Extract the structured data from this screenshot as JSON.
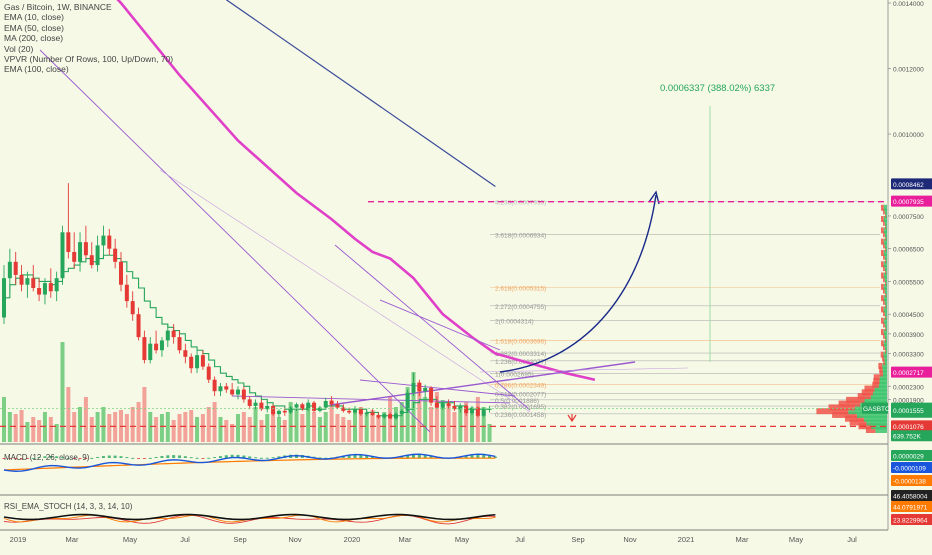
{
  "chart_data": {
    "type": "candlestick",
    "symbol_line": "Gas / Bitcoin, 1W, BINANCE",
    "indicators": [
      "EMA (10, close)",
      "EMA (50, close)",
      "MA (200, close)",
      "Vol (20)",
      "VPVR (Number Of Rows, 100, Up/Down, 70)",
      "EMA (100, close)"
    ],
    "price_axis": {
      "min": 6.6e-05,
      "max": 0.0014,
      "labels": [
        "0.0014000",
        "0.0012000",
        "0.0010000",
        "0.0008462",
        "0.0007935",
        "0.0007500",
        "0.0006500",
        "0.0005500",
        "0.0004500",
        "0.0003900",
        "0.0003300",
        "0.0002717",
        "0.0002300",
        "0.0001900",
        "0.0001617",
        "0.0001555",
        "0.0001076",
        "0.0000029",
        "-0.0000109",
        "-0.0000138",
        "44.0791971",
        "23.8229964"
      ]
    },
    "price_labels": [
      {
        "value": "0.0014000",
        "price": 0.0014
      },
      {
        "value": "0.0012000",
        "price": 0.0012
      },
      {
        "value": "0.0010000",
        "price": 0.001
      },
      {
        "value": "0.0007500",
        "price": 0.00075
      },
      {
        "value": "0.0006500",
        "price": 0.00065
      },
      {
        "value": "0.0005500",
        "price": 0.00055
      },
      {
        "value": "0.0004500",
        "price": 0.00045
      },
      {
        "value": "0.0003900",
        "price": 0.00039
      },
      {
        "value": "0.0003300",
        "price": 0.00033
      },
      {
        "value": "0.0002300",
        "price": 0.00023
      },
      {
        "value": "0.0001900",
        "price": 0.00019
      }
    ],
    "price_badges": [
      {
        "text": "0.0008462",
        "price": 0.0008462,
        "color": "#1e2a78"
      },
      {
        "text": "0.0007935",
        "price": 0.0007935,
        "color": "#e91e9a"
      },
      {
        "text": "0.0002717",
        "price": 0.0002717,
        "color": "#e91e9a"
      },
      {
        "text": "0.0001617",
        "price": 0.0001617,
        "color": "#26a65b",
        "prefix": "GASBTC"
      },
      {
        "text": "5d 11h",
        "price": 0.000149,
        "color": "#26a65b"
      },
      {
        "text": "0.0001555",
        "price": 0.0001555,
        "color": "#26a65b"
      },
      {
        "text": "0.0001076",
        "price": 0.0001076,
        "color": "#e53935"
      },
      {
        "text": "639.752K",
        "price": 7.75e-05,
        "color": "#26a65b"
      }
    ],
    "time_labels": [
      "2019",
      "Mar",
      "May",
      "Jul",
      "Sep",
      "Nov",
      "2020",
      "Mar",
      "May",
      "Jul",
      "Sep",
      "Nov",
      "2021",
      "Mar",
      "May",
      "Jul"
    ],
    "candles": [
      {
        "o": 0.00044,
        "h": 0.0006,
        "l": 0.00042,
        "c": 0.00056
      },
      {
        "o": 0.00056,
        "h": 0.00065,
        "l": 0.00052,
        "c": 0.00061
      },
      {
        "o": 0.00061,
        "h": 0.00064,
        "l": 0.00054,
        "c": 0.00057
      },
      {
        "o": 0.00057,
        "h": 0.0006,
        "l": 0.00052,
        "c": 0.00054
      },
      {
        "o": 0.00054,
        "h": 0.00058,
        "l": 0.0005,
        "c": 0.00056
      },
      {
        "o": 0.00056,
        "h": 0.0006,
        "l": 0.00052,
        "c": 0.00053
      },
      {
        "o": 0.00053,
        "h": 0.00056,
        "l": 0.00049,
        "c": 0.00051
      },
      {
        "o": 0.00051,
        "h": 0.00056,
        "l": 0.00048,
        "c": 0.000545
      },
      {
        "o": 0.000545,
        "h": 0.00059,
        "l": 0.0005,
        "c": 0.00052
      },
      {
        "o": 0.00052,
        "h": 0.00058,
        "l": 0.00049,
        "c": 0.00056
      },
      {
        "o": 0.00056,
        "h": 0.00072,
        "l": 0.00054,
        "c": 0.0007
      },
      {
        "o": 0.0007,
        "h": 0.00085,
        "l": 0.00062,
        "c": 0.00064
      },
      {
        "o": 0.00064,
        "h": 0.0007,
        "l": 0.00059,
        "c": 0.00061
      },
      {
        "o": 0.00061,
        "h": 0.0007,
        "l": 0.00058,
        "c": 0.00067
      },
      {
        "o": 0.00067,
        "h": 0.00072,
        "l": 0.00062,
        "c": 0.00063
      },
      {
        "o": 0.00063,
        "h": 0.00067,
        "l": 0.00059,
        "c": 0.0006
      },
      {
        "o": 0.0006,
        "h": 0.00069,
        "l": 0.00058,
        "c": 0.00066
      },
      {
        "o": 0.00066,
        "h": 0.00072,
        "l": 0.00062,
        "c": 0.00069
      },
      {
        "o": 0.00069,
        "h": 0.00071,
        "l": 0.00063,
        "c": 0.00065
      },
      {
        "o": 0.00065,
        "h": 0.00068,
        "l": 0.00059,
        "c": 0.00061
      },
      {
        "o": 0.00061,
        "h": 0.00064,
        "l": 0.00052,
        "c": 0.00054
      },
      {
        "o": 0.00054,
        "h": 0.00057,
        "l": 0.00047,
        "c": 0.00049
      },
      {
        "o": 0.00049,
        "h": 0.00052,
        "l": 0.00043,
        "c": 0.00045
      },
      {
        "o": 0.00045,
        "h": 0.00047,
        "l": 0.00037,
        "c": 0.00038
      },
      {
        "o": 0.00038,
        "h": 0.0004,
        "l": 0.0003,
        "c": 0.00031
      },
      {
        "o": 0.00031,
        "h": 0.00038,
        "l": 0.0003,
        "c": 0.00036
      },
      {
        "o": 0.00036,
        "h": 0.0004,
        "l": 0.00033,
        "c": 0.00034
      },
      {
        "o": 0.00034,
        "h": 0.00038,
        "l": 0.00032,
        "c": 0.00037
      },
      {
        "o": 0.00037,
        "h": 0.00042,
        "l": 0.00035,
        "c": 0.0004
      },
      {
        "o": 0.0004,
        "h": 0.00042,
        "l": 0.00036,
        "c": 0.00038
      },
      {
        "o": 0.00038,
        "h": 0.0004,
        "l": 0.00033,
        "c": 0.00034
      },
      {
        "o": 0.00034,
        "h": 0.00036,
        "l": 0.0003,
        "c": 0.00032
      },
      {
        "o": 0.00032,
        "h": 0.00033,
        "l": 0.00027,
        "c": 0.000285
      },
      {
        "o": 0.000285,
        "h": 0.00034,
        "l": 0.00027,
        "c": 0.000325
      },
      {
        "o": 0.000325,
        "h": 0.00034,
        "l": 0.00028,
        "c": 0.00029
      },
      {
        "o": 0.00029,
        "h": 0.0003,
        "l": 0.00024,
        "c": 0.00025
      },
      {
        "o": 0.00025,
        "h": 0.00026,
        "l": 0.0002,
        "c": 0.000215
      },
      {
        "o": 0.000215,
        "h": 0.00024,
        "l": 0.0002,
        "c": 0.00023
      },
      {
        "o": 0.00023,
        "h": 0.00024,
        "l": 0.00021,
        "c": 0.00022
      },
      {
        "o": 0.00022,
        "h": 0.00024,
        "l": 0.0002,
        "c": 0.000205
      },
      {
        "o": 0.000205,
        "h": 0.00023,
        "l": 0.00019,
        "c": 0.00022
      },
      {
        "o": 0.00022,
        "h": 0.00023,
        "l": 0.00018,
        "c": 0.00019
      },
      {
        "o": 0.00019,
        "h": 0.0002,
        "l": 0.00016,
        "c": 0.00017
      },
      {
        "o": 0.00017,
        "h": 0.00019,
        "l": 0.00016,
        "c": 0.00018
      },
      {
        "o": 0.00018,
        "h": 0.00019,
        "l": 0.000155,
        "c": 0.00016
      },
      {
        "o": 0.00016,
        "h": 0.00018,
        "l": 0.00015,
        "c": 0.00017
      },
      {
        "o": 0.00017,
        "h": 0.000175,
        "l": 0.00014,
        "c": 0.000145
      },
      {
        "o": 0.000145,
        "h": 0.00016,
        "l": 0.000135,
        "c": 0.000155
      },
      {
        "o": 0.000155,
        "h": 0.000165,
        "l": 0.00014,
        "c": 0.00015
      },
      {
        "o": 0.00015,
        "h": 0.00017,
        "l": 0.000145,
        "c": 0.000165
      },
      {
        "o": 0.000165,
        "h": 0.00018,
        "l": 0.000155,
        "c": 0.000175
      },
      {
        "o": 0.000175,
        "h": 0.00018,
        "l": 0.000155,
        "c": 0.00016
      },
      {
        "o": 0.00016,
        "h": 0.00019,
        "l": 0.000155,
        "c": 0.00018
      },
      {
        "o": 0.00018,
        "h": 0.000185,
        "l": 0.00015,
        "c": 0.000155
      },
      {
        "o": 0.000155,
        "h": 0.00017,
        "l": 0.00015,
        "c": 0.000165
      },
      {
        "o": 0.000165,
        "h": 0.000195,
        "l": 0.00016,
        "c": 0.000185
      },
      {
        "o": 0.000185,
        "h": 0.0002,
        "l": 0.00017,
        "c": 0.000175
      },
      {
        "o": 0.000175,
        "h": 0.000185,
        "l": 0.00016,
        "c": 0.000165
      },
      {
        "o": 0.000165,
        "h": 0.000175,
        "l": 0.00015,
        "c": 0.000155
      },
      {
        "o": 0.000155,
        "h": 0.000165,
        "l": 0.000145,
        "c": 0.00015
      },
      {
        "o": 0.00015,
        "h": 0.00017,
        "l": 0.000145,
        "c": 0.00016
      },
      {
        "o": 0.00016,
        "h": 0.000165,
        "l": 0.00014,
        "c": 0.000145
      },
      {
        "o": 0.000145,
        "h": 0.000155,
        "l": 0.000138,
        "c": 0.00015
      },
      {
        "o": 0.00015,
        "h": 0.00016,
        "l": 0.00014,
        "c": 0.000142
      },
      {
        "o": 0.000142,
        "h": 0.00015,
        "l": 0.00013,
        "c": 0.000135
      },
      {
        "o": 0.000135,
        "h": 0.000148,
        "l": 0.00013,
        "c": 0.000145
      },
      {
        "o": 0.000145,
        "h": 0.00015,
        "l": 0.00013,
        "c": 0.000132
      },
      {
        "o": 0.000132,
        "h": 0.00015,
        "l": 0.000128,
        "c": 0.000146
      },
      {
        "o": 0.000146,
        "h": 0.00016,
        "l": 0.00014,
        "c": 0.000155
      },
      {
        "o": 0.000155,
        "h": 0.00022,
        "l": 0.00015,
        "c": 0.00021
      },
      {
        "o": 0.00021,
        "h": 0.00027,
        "l": 0.0002,
        "c": 0.00024
      },
      {
        "o": 0.00024,
        "h": 0.00025,
        "l": 0.0002,
        "c": 0.000215
      },
      {
        "o": 0.000215,
        "h": 0.000235,
        "l": 0.000195,
        "c": 0.000225
      },
      {
        "o": 0.000225,
        "h": 0.00023,
        "l": 0.00017,
        "c": 0.00018
      },
      {
        "o": 0.00018,
        "h": 0.0002,
        "l": 0.00016,
        "c": 0.000165
      },
      {
        "o": 0.000165,
        "h": 0.000185,
        "l": 0.000158,
        "c": 0.000178
      },
      {
        "o": 0.000178,
        "h": 0.00019,
        "l": 0.00016,
        "c": 0.00017
      },
      {
        "o": 0.00017,
        "h": 0.000185,
        "l": 0.000155,
        "c": 0.00016
      },
      {
        "o": 0.00016,
        "h": 0.000178,
        "l": 0.00015,
        "c": 0.00017
      },
      {
        "o": 0.00017,
        "h": 0.000175,
        "l": 0.00014,
        "c": 0.000148
      },
      {
        "o": 0.000148,
        "h": 0.00017,
        "l": 0.000142,
        "c": 0.000165
      },
      {
        "o": 0.000165,
        "h": 0.00017,
        "l": 0.000135,
        "c": 0.00014
      },
      {
        "o": 0.00014,
        "h": 0.000165,
        "l": 0.000135,
        "c": 0.000158
      },
      {
        "o": 0.000158,
        "h": 0.00017,
        "l": 0.00015,
        "c": 0.0001617
      }
    ],
    "ema10": [
      0.0005,
      0.00054,
      0.00056,
      0.00057,
      0.00057,
      0.00056,
      0.00055,
      0.00055,
      0.00054,
      0.00055,
      0.00058,
      0.00059,
      0.0006,
      0.00061,
      0.00062,
      0.00061,
      0.00062,
      0.00063,
      0.00063,
      0.00062,
      0.00061,
      0.00058,
      0.00056,
      0.00053,
      0.00049,
      0.00047,
      0.00044,
      0.00042,
      0.00041,
      0.0004,
      0.00039,
      0.00037,
      0.00035,
      0.00034,
      0.00033,
      0.00031,
      0.00029,
      0.00027,
      0.00026,
      0.00025,
      0.00024,
      0.00023,
      0.00021,
      0.0002,
      0.00019,
      0.00018,
      0.00017,
      0.00017,
      0.00016,
      0.00016,
      0.00016,
      0.00016,
      0.00017,
      0.00016,
      0.00016,
      0.00017,
      0.00017,
      0.00017,
      0.00016,
      0.00016,
      0.00016,
      0.00016,
      0.00015,
      0.00015,
      0.00014,
      0.00014,
      0.00014,
      0.00014,
      0.00015,
      0.00016,
      0.00018,
      0.00019,
      0.00019,
      0.00019,
      0.00018,
      0.00018,
      0.00018,
      0.00017,
      0.00017,
      0.00016,
      0.00016,
      0.00016,
      0.00016,
      0.00016
    ],
    "ma200": [
      [
        0,
        0.00167
      ],
      [
        12,
        0.00155
      ],
      [
        20,
        0.0014
      ],
      [
        30,
        0.00118
      ],
      [
        40,
        0.00098
      ],
      [
        50,
        0.00082
      ],
      [
        56,
        0.00074
      ],
      [
        60,
        0.00068
      ],
      [
        63,
        0.00064
      ],
      [
        66,
        0.00062
      ],
      [
        70,
        0.00056
      ],
      [
        75,
        0.00045
      ],
      [
        80,
        0.00038
      ],
      [
        84,
        0.00033
      ],
      [
        88,
        0.00031
      ],
      [
        92,
        0.00029
      ],
      [
        96,
        0.00027
      ],
      [
        101,
        0.00025
      ]
    ],
    "volume": [
      0.45,
      0.3,
      0.28,
      0.32,
      0.2,
      0.25,
      0.22,
      0.3,
      0.25,
      0.18,
      1.0,
      0.55,
      0.3,
      0.35,
      0.45,
      0.25,
      0.3,
      0.35,
      0.28,
      0.3,
      0.32,
      0.28,
      0.35,
      0.4,
      0.55,
      0.3,
      0.25,
      0.28,
      0.3,
      0.22,
      0.28,
      0.3,
      0.32,
      0.25,
      0.28,
      0.35,
      0.4,
      0.25,
      0.22,
      0.18,
      0.28,
      0.3,
      0.25,
      0.35,
      0.22,
      0.28,
      0.3,
      0.25,
      0.22,
      0.4,
      0.32,
      0.28,
      0.35,
      0.3,
      0.25,
      0.3,
      0.42,
      0.28,
      0.25,
      0.22,
      0.3,
      0.35,
      0.28,
      0.32,
      0.25,
      0.3,
      0.45,
      0.35,
      0.4,
      0.55,
      0.7,
      0.6,
      0.45,
      0.35,
      0.5,
      0.42,
      0.38,
      0.3,
      0.35,
      0.4,
      0.3,
      0.45,
      0.35,
      0.18
    ],
    "fibonacci": [
      {
        "label": "4.236(0.0007935)",
        "price": 0.0007935,
        "color": "#bbbbbb"
      },
      {
        "label": "3.618(0.0006934)",
        "price": 0.0006934,
        "color": "#999999"
      },
      {
        "label": "2.618(0.0005315)",
        "price": 0.0005315,
        "color": "#f4a460"
      },
      {
        "label": "2.272(0.0004755)",
        "price": 0.0004755,
        "color": "#999999"
      },
      {
        "label": "2(0.0004314)",
        "price": 0.0004314,
        "color": "#999999"
      },
      {
        "label": "1.618(0.0003696)",
        "price": 0.0003696,
        "color": "#f4a460"
      },
      {
        "label": "1.382(0.0003314)",
        "price": 0.0003314,
        "color": "#999999"
      },
      {
        "label": "1.236(0.0003077)",
        "price": 0.0003077,
        "color": "#999999"
      },
      {
        "label": "1(0.0002695)",
        "price": 0.0002695,
        "color": "#999999"
      },
      {
        "label": "0.786(0.0002349)",
        "price": 0.0002349,
        "color": "#f4a460"
      },
      {
        "label": "0.618(0.0002077)",
        "price": 0.0002077,
        "color": "#999999"
      },
      {
        "label": "0.5(0.0001886)",
        "price": 0.0001886,
        "color": "#999999"
      },
      {
        "label": "0.382(0.0001695)",
        "price": 0.0001695,
        "color": "#999999"
      },
      {
        "label": "0.236(0.0001458)",
        "price": 0.0001458,
        "color": "#999999"
      }
    ],
    "target_annotation": "0.0006337 (388.02%) 6337",
    "target_level": 0.0007935,
    "support_level": 0.0001076,
    "macd_label": "MACD (12, 26, close, 9)",
    "macd_badges": [
      {
        "text": "0.0000029",
        "color": "#26a65b"
      },
      {
        "text": "-0.0000109",
        "color": "#1a56db"
      },
      {
        "text": "-0.0000138",
        "color": "#ff7a00"
      }
    ],
    "rsi_label": "RSI_EMA_STOCH (14, 3, 3, 14, 10)",
    "rsi_badges": [
      {
        "text": "46.4058004",
        "color": "#222222"
      },
      {
        "text": "44.0791971",
        "color": "#ff7a00"
      },
      {
        "text": "23.8229964",
        "color": "#e53935"
      }
    ],
    "colors": {
      "up": "#26a65b",
      "down": "#e53935",
      "vol_up": "#7dcf86",
      "vol_down": "#f2a299",
      "ma200": "#e040c8",
      "ema10": "#26a65b",
      "background": "#f5f9e6",
      "trend": "#9b59d0",
      "arrow": "#1a2a8a"
    }
  }
}
